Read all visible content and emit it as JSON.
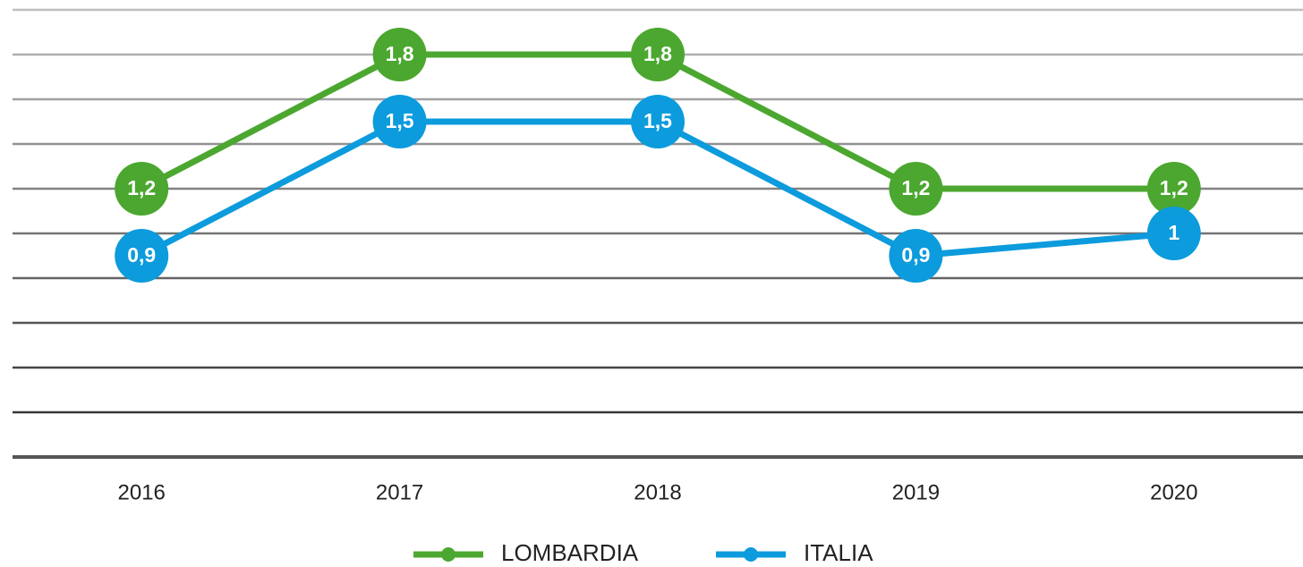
{
  "chart_data": {
    "type": "line",
    "categories": [
      "2016",
      "2017",
      "2018",
      "2019",
      "2020"
    ],
    "series": [
      {
        "name": "LOMBARDIA",
        "color": "#4ba72f",
        "values": [
          1.2,
          1.8,
          1.8,
          1.2,
          1.2
        ],
        "value_labels": [
          "1,2",
          "1,8",
          "1,8",
          "1,2",
          "1,2"
        ]
      },
      {
        "name": "ITALIA",
        "color": "#0c9bdc",
        "values": [
          0.9,
          1.5,
          1.5,
          0.9,
          1
        ],
        "value_labels": [
          "0,9",
          "1,5",
          "1,5",
          "0,9",
          "1"
        ]
      }
    ],
    "ylim": [
      0,
      2
    ],
    "yticks": [
      0,
      0.2,
      0.4,
      0.6,
      0.8,
      1,
      1.2,
      1.4,
      1.6,
      1.8,
      2
    ],
    "grid": true,
    "legend": "bottom"
  }
}
